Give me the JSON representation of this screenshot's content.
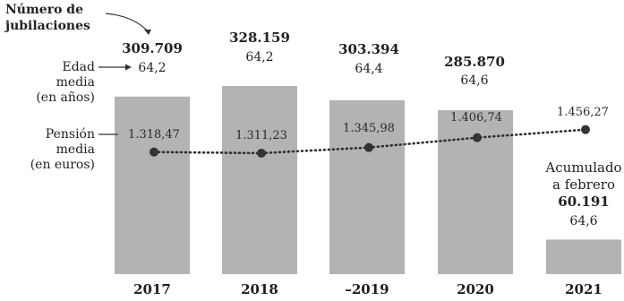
{
  "labels": {
    "retirements": "Número de jubilaciones",
    "retirements_line1": "Número de",
    "retirements_line2": "jubilaciones",
    "age_line1": "Edad",
    "age_line2": "media",
    "age_line3": "(en años)",
    "pension_line1": "Pensión",
    "pension_line2": "media",
    "pension_line3": "(en euros)",
    "note_line1": "Acumulado",
    "note_line2": "a febrero"
  },
  "chart_data": {
    "type": "bar",
    "categories": [
      "2017",
      "2018",
      "2019",
      "2020",
      "2021"
    ],
    "category_labels": [
      "2017",
      "2018",
      "–2019",
      "2020",
      "2021"
    ],
    "series": [
      {
        "name": "Número de jubilaciones",
        "values": [
          309709,
          328159,
          303394,
          285870,
          60191
        ],
        "labels": [
          "309.709",
          "328.159",
          "303.394",
          "285.870",
          "60.191"
        ]
      },
      {
        "name": "Edad media (en años)",
        "values": [
          64.2,
          64.2,
          64.4,
          64.6,
          64.6
        ],
        "labels": [
          "64,2",
          "64,2",
          "64,4",
          "64,6",
          "64,6"
        ]
      },
      {
        "name": "Pensión media (en euros)",
        "type": "line",
        "values": [
          1318.47,
          1311.23,
          1345.98,
          1406.74,
          1456.27
        ],
        "labels": [
          "1.318,47",
          "1.311,23",
          "1.345,98",
          "1.406,74",
          "1.456,27"
        ]
      }
    ],
    "grid": false,
    "colors": {
      "bar": "#b3b3b3",
      "line": "#2e2e2e",
      "marker": "#333333"
    }
  }
}
